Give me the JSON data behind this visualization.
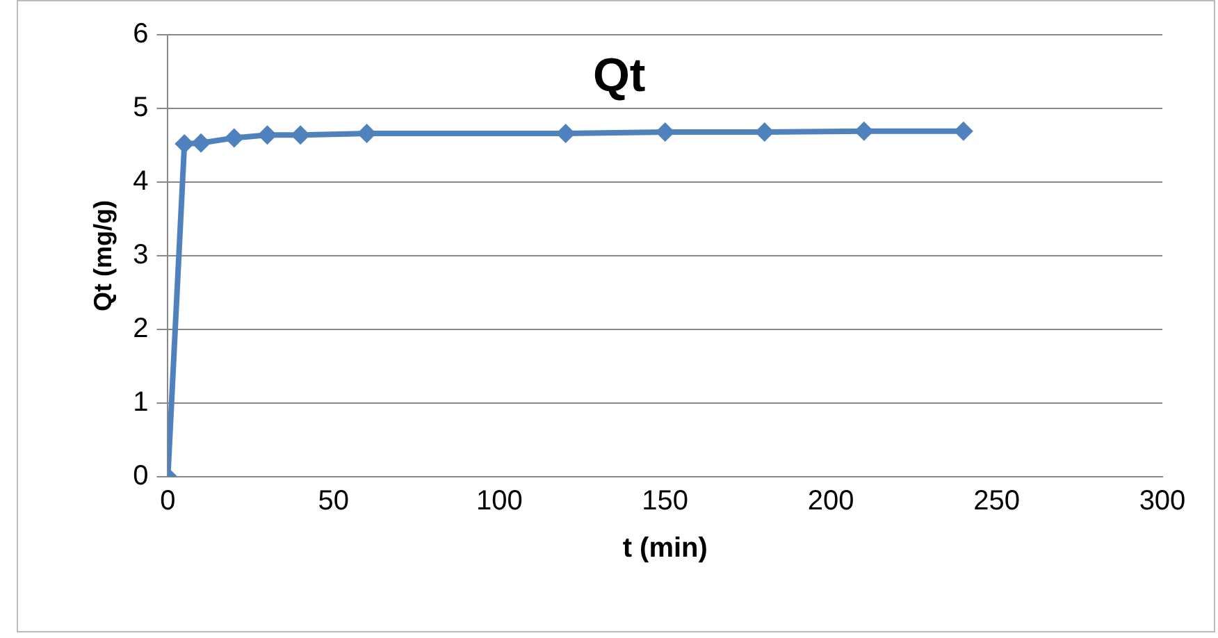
{
  "chart_data": {
    "type": "line",
    "title": "Qt",
    "xlabel": "t (min)",
    "ylabel": "Qt (mg/g)",
    "x": [
      0,
      5,
      10,
      20,
      30,
      40,
      60,
      120,
      150,
      180,
      210,
      240
    ],
    "series": [
      {
        "color": "#4f81bd",
        "values": [
          0,
          4.52,
          4.53,
          4.6,
          4.64,
          4.64,
          4.66,
          4.66,
          4.68,
          4.68,
          4.69,
          4.69
        ]
      }
    ],
    "xlim": [
      0,
      300
    ],
    "xticks": [
      0,
      50,
      100,
      150,
      200,
      250,
      300
    ],
    "ylim": [
      0,
      6
    ],
    "yticks": [
      0,
      1,
      2,
      3,
      4,
      5,
      6
    ],
    "grid": "y",
    "legend": false,
    "marker": "diamond",
    "line_style": "solid"
  }
}
